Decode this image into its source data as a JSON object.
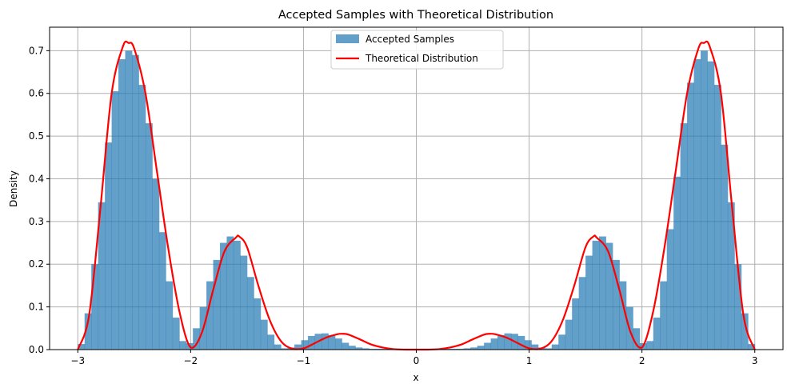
{
  "chart_data": {
    "type": "bar",
    "title": "Accepted Samples with Theoretical Distribution",
    "xlabel": "x",
    "ylabel": "Density",
    "xlim": [
      -3.25,
      3.25
    ],
    "ylim": [
      0,
      0.755
    ],
    "xticks": [
      -3,
      -2,
      -1,
      0,
      1,
      2,
      3
    ],
    "xtick_labels": [
      "−3",
      "−2",
      "−1",
      "0",
      "1",
      "2",
      "3"
    ],
    "yticks": [
      0.0,
      0.1,
      0.2,
      0.3,
      0.4,
      0.5,
      0.6,
      0.7
    ],
    "ytick_labels": [
      "0.0",
      "0.1",
      "0.2",
      "0.3",
      "0.4",
      "0.5",
      "0.6",
      "0.7"
    ],
    "grid": true,
    "legend_position": "upper-center",
    "series": [
      {
        "name": "Accepted Samples",
        "type": "histogram",
        "color": "#1f77b4",
        "opacity": 0.7,
        "bin_range": [
          -3,
          3
        ],
        "bins": 100,
        "values": [
          0.013,
          0.085,
          0.2,
          0.345,
          0.485,
          0.605,
          0.68,
          0.7,
          0.69,
          0.62,
          0.53,
          0.4,
          0.275,
          0.16,
          0.075,
          0.02,
          0.015,
          0.05,
          0.1,
          0.16,
          0.21,
          0.25,
          0.265,
          0.255,
          0.22,
          0.17,
          0.12,
          0.07,
          0.035,
          0.012,
          0.003,
          0.005,
          0.012,
          0.022,
          0.032,
          0.037,
          0.038,
          0.034,
          0.026,
          0.016,
          0.009,
          0.005,
          0.003,
          0.002,
          0.002,
          0.002,
          0.002,
          0.002,
          0.002,
          0.002,
          0.002,
          0.002,
          0.002,
          0.002,
          0.002,
          0.002,
          0.002,
          0.003,
          0.005,
          0.009,
          0.016,
          0.026,
          0.034,
          0.038,
          0.037,
          0.032,
          0.022,
          0.012,
          0.005,
          0.003,
          0.012,
          0.035,
          0.07,
          0.12,
          0.17,
          0.22,
          0.255,
          0.265,
          0.25,
          0.21,
          0.16,
          0.1,
          0.05,
          0.015,
          0.02,
          0.075,
          0.16,
          0.282,
          0.405,
          0.53,
          0.625,
          0.68,
          0.7,
          0.675,
          0.62,
          0.48,
          0.345,
          0.2,
          0.085,
          0.013
        ]
      },
      {
        "name": "Theoretical Distribution",
        "type": "line",
        "color": "#ff0000",
        "x": [
          -3.0,
          -2.9,
          -2.8,
          -2.7,
          -2.6,
          -2.55,
          -2.5,
          -2.4,
          -2.3,
          -2.2,
          -2.1,
          -2.0,
          -1.9,
          -1.8,
          -1.7,
          -1.6,
          -1.57,
          -1.5,
          -1.4,
          -1.3,
          -1.2,
          -1.1,
          -1.0,
          -0.9,
          -0.8,
          -0.7,
          -0.65,
          -0.6,
          -0.5,
          -0.4,
          -0.3,
          -0.2,
          -0.1,
          0.0,
          0.1,
          0.2,
          0.3,
          0.4,
          0.5,
          0.6,
          0.65,
          0.7,
          0.8,
          0.9,
          1.0,
          1.1,
          1.2,
          1.3,
          1.4,
          1.5,
          1.57,
          1.6,
          1.7,
          1.8,
          1.9,
          2.0,
          2.1,
          2.2,
          2.3,
          2.4,
          2.5,
          2.55,
          2.6,
          2.7,
          2.8,
          2.9,
          3.0
        ],
        "y": [
          0.0,
          0.08,
          0.33,
          0.6,
          0.71,
          0.718,
          0.705,
          0.6,
          0.42,
          0.24,
          0.09,
          0.005,
          0.04,
          0.14,
          0.23,
          0.262,
          0.265,
          0.24,
          0.15,
          0.07,
          0.02,
          0.002,
          0.003,
          0.015,
          0.028,
          0.036,
          0.037,
          0.035,
          0.024,
          0.012,
          0.005,
          0.001,
          0.0,
          0.0,
          0.0,
          0.001,
          0.005,
          0.012,
          0.024,
          0.035,
          0.037,
          0.036,
          0.028,
          0.015,
          0.003,
          0.002,
          0.02,
          0.07,
          0.15,
          0.24,
          0.265,
          0.262,
          0.23,
          0.14,
          0.04,
          0.005,
          0.09,
          0.24,
          0.42,
          0.6,
          0.705,
          0.718,
          0.71,
          0.6,
          0.33,
          0.08,
          0.0
        ]
      }
    ]
  }
}
